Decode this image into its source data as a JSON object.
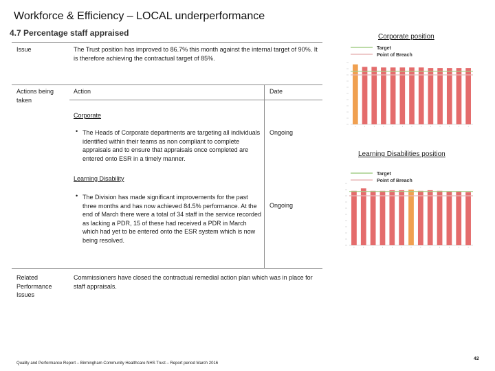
{
  "header": {
    "title": "Workforce & Efficiency – LOCAL underperformance",
    "section": "4.7 Percentage staff appraised"
  },
  "table": {
    "issue_label": "Issue",
    "issue_text": "The Trust position has improved to 86.7% this month against the internal target of 90%. It is therefore achieving the contractual target of  85%.",
    "actions_label": "Actions being taken",
    "action_col": "Action",
    "date_col": "Date",
    "corporate": {
      "heading": "Corporate",
      "bullet": "•",
      "text": "The Heads of Corporate departments are targeting all individuals identified within their teams as non compliant to complete appraisals and to ensure that appraisals once completed are entered onto ESR in a timely manner.",
      "date": "Ongoing"
    },
    "learning_disability": {
      "heading": "Learning Disability",
      "bullet": "•",
      "text": "The Division has made significant improvements for the past three months and has now achieved 84.5% performance.  At the end of March there were a total of 34 staff in the service recorded as lacking a PDR,  15 of these had received a PDR in March which had yet to be entered onto the ESR system which is now being resolved.",
      "date": "Ongoing"
    },
    "related_label": "Related Performance Issues",
    "related_text": "Commissioners have closed the contractual remedial action plan  which was in place for staff appraisals."
  },
  "panels": {
    "corporate_title": "Corporate position",
    "ld_title": "Learning Disabilities position"
  },
  "colors": {
    "bar_red": "#e46c6c",
    "bar_orange": "#f0a050",
    "target_line": "#a6cf8a",
    "breach_line": "#e8b8b8"
  },
  "chart_data": [
    {
      "type": "bar",
      "legend": [
        "Target",
        "Point of Breach"
      ],
      "legend_position": "top-right",
      "bar_colors": [
        "orange",
        "red",
        "red",
        "red",
        "red",
        "red",
        "red",
        "red",
        "red",
        "red",
        "red",
        "red",
        "red"
      ],
      "values": [
        0.97,
        0.93,
        0.93,
        0.92,
        0.92,
        0.92,
        0.92,
        0.92,
        0.91,
        0.91,
        0.91,
        0.91,
        0.91
      ],
      "target": 0.86,
      "breach": 0.8
    },
    {
      "type": "bar",
      "legend": [
        "Target",
        "Point of Breach"
      ],
      "legend_position": "top-right",
      "bar_colors": [
        "red",
        "red",
        "red",
        "red",
        "red",
        "red",
        "orange",
        "red",
        "red",
        "red",
        "red",
        "red",
        "red"
      ],
      "values": [
        0.88,
        0.92,
        0.88,
        0.88,
        0.89,
        0.89,
        0.9,
        0.88,
        0.89,
        0.88,
        0.87,
        0.87,
        0.86
      ],
      "target": 0.87,
      "breach": 0.8
    }
  ],
  "footer": {
    "text": "Quality and Performance Report – Birmingham Community Healthcare NHS Trust – Report period March 2016",
    "page": "42"
  }
}
